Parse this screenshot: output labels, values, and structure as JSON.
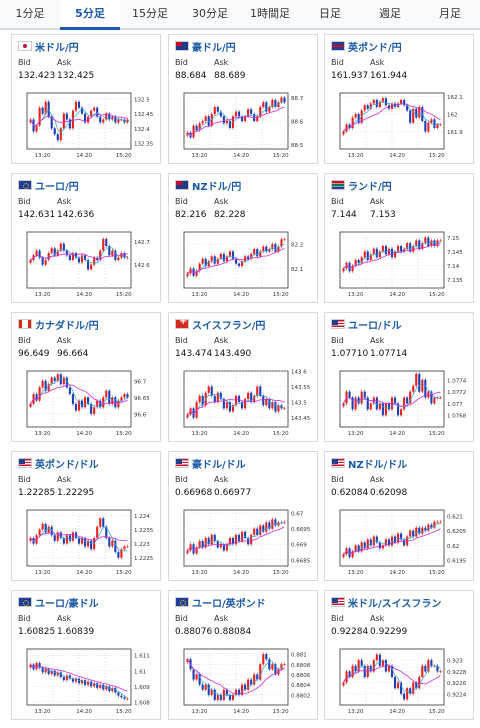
{
  "tabs": [
    {
      "label": "1分足",
      "active": false
    },
    {
      "label": "5分足",
      "active": true
    },
    {
      "label": "15分足",
      "active": false
    },
    {
      "label": "30分足",
      "active": false
    },
    {
      "label": "1時間足",
      "active": false
    },
    {
      "label": "日足",
      "active": false
    },
    {
      "label": "週足",
      "active": false
    },
    {
      "label": "月足",
      "active": false
    }
  ],
  "labels": {
    "bid": "Bid",
    "ask": "Ask"
  },
  "colors": {
    "up": "#e8231d",
    "down": "#1f3fb5",
    "ma": "#d22bd8",
    "tabAccent": "#1a5aa6"
  },
  "cards": [
    {
      "flag": "jp",
      "title": "米ドル/円",
      "bid": "132.423",
      "ask": "132.425",
      "chart_data": {
        "type": "candlestick",
        "x_ticks": [
          "13:20",
          "14:20",
          "15:20"
        ],
        "y_ticks": [
          "132.5",
          "132.45",
          "132.4",
          "132.35"
        ],
        "ylim": [
          132.33,
          132.52
        ],
        "closes": [
          132.43,
          132.39,
          132.41,
          132.47,
          132.45,
          132.49,
          132.44,
          132.4,
          132.38,
          132.36,
          132.4,
          132.45,
          132.43,
          132.4,
          132.46,
          132.49,
          132.47,
          132.45,
          132.42,
          132.44,
          132.46,
          132.47,
          132.44,
          132.42,
          132.43,
          132.45,
          132.43,
          132.44,
          132.42,
          132.43,
          132.43,
          132.42,
          132.43
        ]
      }
    },
    {
      "flag": "au",
      "title": "豪ドル/円",
      "bid": "88.684",
      "ask": "88.689",
      "chart_data": {
        "type": "candlestick",
        "x_ticks": [
          "13:20",
          "14:20",
          "15:20"
        ],
        "y_ticks": [
          "88.7",
          "88.6",
          "88.5"
        ],
        "ylim": [
          88.48,
          88.72
        ],
        "closes": [
          88.55,
          88.53,
          88.58,
          88.56,
          88.59,
          88.6,
          88.62,
          88.58,
          88.63,
          88.66,
          88.64,
          88.62,
          88.59,
          88.6,
          88.57,
          88.62,
          88.64,
          88.62,
          88.6,
          88.62,
          88.65,
          88.63,
          88.6,
          88.62,
          88.66,
          88.68,
          88.64,
          88.66,
          88.69,
          88.66,
          88.68,
          88.7,
          88.68
        ]
      }
    },
    {
      "flag": "gb",
      "title": "英ポンド/円",
      "bid": "161.937",
      "ask": "161.944",
      "chart_data": {
        "type": "candlestick",
        "x_ticks": [
          "13:20",
          "14:20",
          "15:20"
        ],
        "y_ticks": [
          "162.1",
          "162",
          "161.9"
        ],
        "ylim": [
          161.8,
          162.12
        ],
        "closes": [
          161.9,
          161.94,
          161.92,
          161.98,
          162.0,
          161.95,
          162.02,
          162.05,
          162.03,
          162.06,
          162.08,
          162.04,
          162.07,
          162.09,
          162.05,
          162.03,
          162.06,
          162.04,
          162.06,
          162.08,
          162.05,
          162.02,
          161.95,
          162.03,
          161.98,
          162.04,
          161.96,
          161.9,
          161.95,
          161.97,
          161.92,
          161.94,
          161.94
        ]
      }
    },
    {
      "flag": "eu",
      "title": "ユーロ/円",
      "bid": "142.631",
      "ask": "142.636",
      "chart_data": {
        "type": "candlestick",
        "x_ticks": [
          "13:20",
          "14:20",
          "15:20"
        ],
        "y_ticks": [
          "142.7",
          "142.6"
        ],
        "ylim": [
          142.5,
          142.74
        ],
        "closes": [
          142.62,
          142.64,
          142.66,
          142.63,
          142.6,
          142.62,
          142.65,
          142.67,
          142.64,
          142.66,
          142.69,
          142.66,
          142.64,
          142.62,
          142.65,
          142.63,
          142.61,
          142.64,
          142.62,
          142.58,
          142.6,
          142.63,
          142.62,
          142.66,
          142.71,
          142.68,
          142.64,
          142.66,
          142.62,
          142.63,
          142.65,
          142.63,
          142.63
        ]
      }
    },
    {
      "flag": "nz",
      "title": "NZドル/円",
      "bid": "82.216",
      "ask": "82.228",
      "chart_data": {
        "type": "candlestick",
        "x_ticks": [
          "13:20",
          "14:20",
          "15:20"
        ],
        "y_ticks": [
          "82.2",
          "82.1"
        ],
        "ylim": [
          82.02,
          82.25
        ],
        "closes": [
          82.08,
          82.1,
          82.07,
          82.09,
          82.12,
          82.14,
          82.11,
          82.13,
          82.15,
          82.12,
          82.14,
          82.16,
          82.13,
          82.15,
          82.17,
          82.14,
          82.12,
          82.11,
          82.13,
          82.15,
          82.14,
          82.16,
          82.18,
          82.15,
          82.17,
          82.19,
          82.17,
          82.18,
          82.2,
          82.17,
          82.19,
          82.22,
          82.22
        ]
      }
    },
    {
      "flag": "za",
      "title": "ランド/円",
      "bid": "7.144",
      "ask": "7.153",
      "chart_data": {
        "type": "candlestick",
        "x_ticks": [
          "13:20",
          "14:20",
          "15:20"
        ],
        "y_ticks": [
          "7.15",
          "7.145",
          "7.14",
          "7.135"
        ],
        "ylim": [
          7.132,
          7.152
        ],
        "closes": [
          7.139,
          7.141,
          7.138,
          7.14,
          7.142,
          7.141,
          7.143,
          7.145,
          7.142,
          7.144,
          7.146,
          7.143,
          7.145,
          7.147,
          7.144,
          7.146,
          7.143,
          7.145,
          7.147,
          7.145,
          7.146,
          7.148,
          7.145,
          7.147,
          7.149,
          7.146,
          7.148,
          7.15,
          7.147,
          7.149,
          7.147,
          7.149,
          7.149
        ]
      }
    },
    {
      "flag": "ca",
      "title": "カナダドル/円",
      "bid": "96.649",
      "ask": "96.664",
      "chart_data": {
        "type": "candlestick",
        "x_ticks": [
          "13:20",
          "14:20",
          "15:20"
        ],
        "y_ticks": [
          "96.7",
          "96.65",
          "96.6"
        ],
        "ylim": [
          96.56,
          96.73
        ],
        "closes": [
          96.63,
          96.66,
          96.64,
          96.68,
          96.7,
          96.67,
          96.69,
          96.71,
          96.7,
          96.72,
          96.69,
          96.71,
          96.68,
          96.66,
          96.63,
          96.61,
          96.64,
          96.62,
          96.65,
          96.63,
          96.6,
          96.62,
          96.64,
          96.62,
          96.65,
          96.67,
          96.63,
          96.65,
          96.62,
          96.64,
          96.65,
          96.66,
          96.65
        ]
      }
    },
    {
      "flag": "ch",
      "title": "スイスフラン/円",
      "bid": "143.474",
      "ask": "143.490",
      "chart_data": {
        "type": "candlestick",
        "x_ticks": [
          "13:20",
          "14:20",
          "15:20"
        ],
        "y_ticks": [
          "143.6",
          "143.55",
          "143.5",
          "143.45"
        ],
        "ylim": [
          143.42,
          143.6
        ],
        "closes": [
          143.46,
          143.48,
          143.45,
          143.5,
          143.52,
          143.49,
          143.53,
          143.55,
          143.52,
          143.5,
          143.53,
          143.51,
          143.48,
          143.5,
          143.47,
          143.49,
          143.52,
          143.5,
          143.48,
          143.51,
          143.53,
          143.5,
          143.52,
          143.55,
          143.52,
          143.49,
          143.51,
          143.48,
          143.5,
          143.47,
          143.49,
          143.48,
          143.48
        ]
      }
    },
    {
      "flag": "us",
      "title": "ユーロ/ドル",
      "bid": "1.07710",
      "ask": "1.07714",
      "chart_data": {
        "type": "candlestick",
        "x_ticks": [
          "13:20",
          "14:20",
          "15:20"
        ],
        "y_ticks": [
          "1.0774",
          "1.0772",
          "1.077",
          "1.0768"
        ],
        "ylim": [
          1.0766,
          1.07755
        ],
        "closes": [
          1.077,
          1.0772,
          1.0771,
          1.0769,
          1.0771,
          1.077,
          1.0772,
          1.0771,
          1.0769,
          1.077,
          1.0771,
          1.0769,
          1.077,
          1.0768,
          1.077,
          1.0769,
          1.0771,
          1.077,
          1.0768,
          1.0769,
          1.0771,
          1.077,
          1.0772,
          1.0773,
          1.0775,
          1.0772,
          1.0774,
          1.0771,
          1.0772,
          1.077,
          1.0771,
          1.0771,
          1.0771
        ]
      }
    },
    {
      "flag": "us",
      "title": "英ポンド/ドル",
      "bid": "1.22285",
      "ask": "1.22295",
      "chart_data": {
        "type": "candlestick",
        "x_ticks": [
          "13:20",
          "14:20",
          "15:20"
        ],
        "y_ticks": [
          "1.224",
          "1.2235",
          "1.223",
          "1.2225"
        ],
        "ylim": [
          1.2222,
          1.2242
        ],
        "closes": [
          1.2232,
          1.223,
          1.2233,
          1.2235,
          1.2237,
          1.2234,
          1.2236,
          1.2233,
          1.2231,
          1.2234,
          1.2232,
          1.223,
          1.2233,
          1.2231,
          1.2234,
          1.2232,
          1.223,
          1.2232,
          1.2229,
          1.2231,
          1.2228,
          1.2232,
          1.2236,
          1.2239,
          1.2236,
          1.2232,
          1.2229,
          1.2231,
          1.2227,
          1.2225,
          1.2228,
          1.2229,
          1.2229
        ]
      }
    },
    {
      "flag": "us",
      "title": "豪ドル/ドル",
      "bid": "0.66968",
      "ask": "0.66977",
      "chart_data": {
        "type": "candlestick",
        "x_ticks": [
          "13:20",
          "14:20",
          "15:20"
        ],
        "y_ticks": [
          "0.67",
          "0.6695",
          "0.669",
          "0.6685"
        ],
        "ylim": [
          0.6683,
          0.6701
        ],
        "closes": [
          0.6688,
          0.669,
          0.6687,
          0.6689,
          0.6691,
          0.6689,
          0.6692,
          0.669,
          0.6693,
          0.6691,
          0.6689,
          0.669,
          0.6688,
          0.669,
          0.6692,
          0.669,
          0.6693,
          0.6691,
          0.6694,
          0.6692,
          0.669,
          0.6693,
          0.6695,
          0.6693,
          0.6696,
          0.6694,
          0.6697,
          0.6695,
          0.6698,
          0.6696,
          0.6697,
          0.6697,
          0.6697
        ]
      }
    },
    {
      "flag": "us",
      "title": "NZドル/ドル",
      "bid": "0.62084",
      "ask": "0.62098",
      "chart_data": {
        "type": "candlestick",
        "x_ticks": [
          "13:20",
          "14:20",
          "15:20"
        ],
        "y_ticks": [
          "0.621",
          "0.6205",
          "0.62",
          "0.6195"
        ],
        "ylim": [
          0.6193,
          0.6212
        ],
        "closes": [
          0.6197,
          0.6199,
          0.6196,
          0.6198,
          0.62,
          0.6198,
          0.6201,
          0.6199,
          0.6202,
          0.62,
          0.6203,
          0.6201,
          0.6199,
          0.62,
          0.6202,
          0.62,
          0.6203,
          0.6201,
          0.6204,
          0.6202,
          0.62,
          0.6203,
          0.6205,
          0.6203,
          0.6206,
          0.6204,
          0.6206,
          0.6205,
          0.6207,
          0.6206,
          0.6208,
          0.6208,
          0.6208
        ]
      }
    },
    {
      "flag": "eu",
      "title": "ユーロ/豪ドル",
      "bid": "1.60825",
      "ask": "1.60839",
      "chart_data": {
        "type": "candlestick",
        "x_ticks": [
          "13:20",
          "14:20",
          "15:20"
        ],
        "y_ticks": [
          "1.611",
          "1.61",
          "1.609",
          "1.608"
        ],
        "ylim": [
          1.6078,
          1.6114
        ],
        "closes": [
          1.6104,
          1.6101,
          1.6105,
          1.6102,
          1.6099,
          1.6101,
          1.6098,
          1.61,
          1.6097,
          1.6099,
          1.6096,
          1.6094,
          1.6097,
          1.6095,
          1.6093,
          1.6095,
          1.6092,
          1.6094,
          1.6091,
          1.6093,
          1.609,
          1.6092,
          1.6089,
          1.6091,
          1.6088,
          1.609,
          1.6087,
          1.6089,
          1.6086,
          1.6084,
          1.6083,
          1.6082,
          1.6082
        ]
      }
    },
    {
      "flag": "eu",
      "title": "ユーロ/英ポンド",
      "bid": "0.88076",
      "ask": "0.88084",
      "chart_data": {
        "type": "candlestick",
        "x_ticks": [
          "13:20",
          "14:20",
          "15:20"
        ],
        "y_ticks": [
          "0.881",
          "0.8808",
          "0.8806",
          "0.8804",
          "0.8802"
        ],
        "ylim": [
          0.88,
          0.8811
        ],
        "closes": [
          0.8809,
          0.8807,
          0.8805,
          0.8806,
          0.8804,
          0.8803,
          0.8804,
          0.8802,
          0.8803,
          0.8801,
          0.8802,
          0.8801,
          0.8803,
          0.8802,
          0.8801,
          0.8802,
          0.8803,
          0.8802,
          0.8804,
          0.8803,
          0.8805,
          0.8804,
          0.8806,
          0.8805,
          0.8808,
          0.881,
          0.8809,
          0.8807,
          0.8808,
          0.8806,
          0.8807,
          0.8808,
          0.8808
        ]
      }
    },
    {
      "flag": "us",
      "title": "米ドル/スイスフラン",
      "bid": "0.92284",
      "ask": "0.92299",
      "chart_data": {
        "type": "candlestick",
        "x_ticks": [
          "13:20",
          "14:20",
          "15:20"
        ],
        "y_ticks": [
          "0.923",
          "0.9228",
          "0.9226",
          "0.9224"
        ],
        "ylim": [
          0.9222,
          0.9232
        ],
        "closes": [
          0.9226,
          0.9228,
          0.9227,
          0.9229,
          0.9228,
          0.923,
          0.9229,
          0.9227,
          0.9229,
          0.9228,
          0.923,
          0.9231,
          0.9229,
          0.923,
          0.9228,
          0.9229,
          0.9227,
          0.9225,
          0.9226,
          0.9224,
          0.9223,
          0.9225,
          0.9224,
          0.9226,
          0.9225,
          0.9227,
          0.9229,
          0.9228,
          0.923,
          0.9229,
          0.9229,
          0.9228,
          0.9228
        ]
      }
    }
  ]
}
